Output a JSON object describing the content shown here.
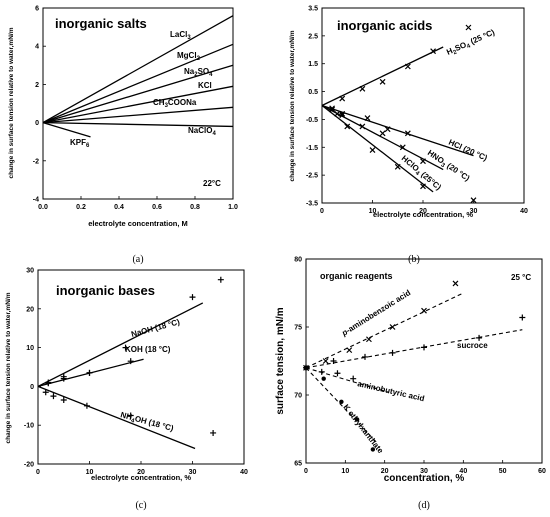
{
  "chart_data": [
    {
      "id": "a",
      "type": "line",
      "caption": "(a)",
      "title": "inorganic salts",
      "xlabel": "electrolyte  concentration, M",
      "ylabel": "change in surface tension relative to water,mN/m",
      "xlim": [
        0,
        1.0
      ],
      "ylim": [
        -4,
        6
      ],
      "xticks": [
        "0.0",
        "0.2",
        "0.4",
        "0.6",
        "0.8",
        "1.0"
      ],
      "yticks": [
        "-4",
        "-2",
        "0",
        "2",
        "4",
        "6"
      ],
      "annotation": "22°C",
      "series": [
        {
          "name": "LaCl3",
          "x": [
            0,
            1.0
          ],
          "y": [
            0,
            5.6
          ]
        },
        {
          "name": "MgCl2",
          "x": [
            0,
            1.0
          ],
          "y": [
            0,
            4.1
          ]
        },
        {
          "name": "Na2SO4",
          "x": [
            0,
            1.0
          ],
          "y": [
            0,
            3.0
          ]
        },
        {
          "name": "KCl",
          "x": [
            0,
            1.0
          ],
          "y": [
            0,
            1.9
          ]
        },
        {
          "name": "CH3COONa",
          "x": [
            0,
            1.0
          ],
          "y": [
            0,
            0.8
          ]
        },
        {
          "name": "NaClO4",
          "x": [
            0,
            1.0
          ],
          "y": [
            0,
            -0.2
          ]
        },
        {
          "name": "KPF6",
          "x": [
            0,
            0.25
          ],
          "y": [
            0,
            -0.75
          ]
        }
      ]
    },
    {
      "id": "b",
      "type": "line",
      "caption": "(b)",
      "title": "inorganic acids",
      "xlabel": "electrolyte concentration, %",
      "ylabel": "change in surface tension relative to water,mN/m",
      "xlim": [
        0,
        40
      ],
      "ylim": [
        -3.5,
        3.5
      ],
      "xticks": [
        "0",
        "10",
        "20",
        "30",
        "40"
      ],
      "yticks": [
        "-3.5",
        "-2.5",
        "-1.5",
        "-0.5",
        "0.5",
        "1.5",
        "2.5",
        "3.5"
      ],
      "series": [
        {
          "name": "H2SO4 (25 °C)",
          "x": [
            0,
            24
          ],
          "y": [
            0,
            2.1
          ],
          "points": [
            [
              4,
              0.25
            ],
            [
              8,
              0.6
            ],
            [
              12,
              0.85
            ],
            [
              17,
              1.4
            ],
            [
              22,
              1.95
            ],
            [
              29,
              2.8
            ]
          ]
        },
        {
          "name": "HCl (20 °C)",
          "x": [
            0,
            30
          ],
          "y": [
            0,
            -1.8
          ],
          "points": [
            [
              2,
              -0.1
            ],
            [
              4,
              -0.3
            ],
            [
              9,
              -0.45
            ],
            [
              13,
              -0.85
            ],
            [
              17,
              -1.0
            ]
          ]
        },
        {
          "name": "HNO3 (20 °C)",
          "x": [
            0,
            24
          ],
          "y": [
            0,
            -2.3
          ],
          "points": [
            [
              2,
              -0.15
            ],
            [
              4,
              -0.35
            ],
            [
              8,
              -0.75
            ],
            [
              12,
              -1.0
            ],
            [
              16,
              -1.5
            ],
            [
              20,
              -2.0
            ]
          ]
        },
        {
          "name": "HClO4 (25°C)",
          "x": [
            0,
            22
          ],
          "y": [
            0,
            -3.1
          ],
          "points": [
            [
              3,
              -0.3
            ],
            [
              5,
              -0.75
            ],
            [
              10,
              -1.6
            ],
            [
              15,
              -2.2
            ],
            [
              20,
              -2.9
            ],
            [
              30,
              -3.4
            ]
          ]
        }
      ]
    },
    {
      "id": "c",
      "type": "line",
      "caption": "(c)",
      "title": "inorganic bases",
      "xlabel": "electrolyte concentration, %",
      "ylabel": "change in surface tension relative to water,mN/m",
      "xlim": [
        0,
        40
      ],
      "ylim": [
        -20,
        30
      ],
      "xticks": [
        "0",
        "10",
        "20",
        "30",
        "40"
      ],
      "yticks": [
        "-20",
        "-10",
        "0",
        "10",
        "20",
        "30"
      ],
      "series": [
        {
          "name": "NaOH (18 °C)",
          "x": [
            0,
            32
          ],
          "y": [
            0,
            21.5
          ],
          "points": [
            [
              2,
              1.0
            ],
            [
              5,
              2.5
            ],
            [
              10,
              3.5
            ],
            [
              17,
              10.0
            ],
            [
              30,
              23.0
            ],
            [
              35.5,
              27.5
            ]
          ]
        },
        {
          "name": "KOH (18 °C)",
          "x": [
            0,
            20.5
          ],
          "y": [
            0,
            7.0
          ],
          "points": [
            [
              2,
              0.8
            ],
            [
              5,
              2.0
            ],
            [
              10,
              3.5
            ],
            [
              18,
              6.5
            ]
          ]
        },
        {
          "name": "NH4OH (18 °C)",
          "x": [
            0,
            30.5
          ],
          "y": [
            0,
            -16.0
          ],
          "points": [
            [
              1.5,
              -1.5
            ],
            [
              3,
              -2.5
            ],
            [
              5,
              -3.5
            ],
            [
              9.5,
              -5.0
            ],
            [
              18,
              -7.5
            ],
            [
              34,
              -12.0
            ]
          ]
        }
      ]
    },
    {
      "id": "d",
      "type": "line",
      "caption": "(d)",
      "title": "organic reagents",
      "xlabel": "concentration, %",
      "ylabel": "surface tension, mN/m",
      "xlim": [
        0,
        60
      ],
      "ylim": [
        65,
        80
      ],
      "xticks": [
        "0",
        "10",
        "20",
        "30",
        "40",
        "50",
        "60"
      ],
      "yticks": [
        "65",
        "70",
        "75",
        "80"
      ],
      "annotation": "25 °C",
      "series": [
        {
          "name": "p-aminobenzoic acid",
          "x": [
            0,
            40
          ],
          "y": [
            72,
            77.5
          ],
          "points": [
            [
              0,
              72
            ],
            [
              5,
              72.5
            ],
            [
              11,
              73.3
            ],
            [
              16,
              74.1
            ],
            [
              22,
              75.0
            ],
            [
              30,
              76.2
            ],
            [
              38,
              78.2
            ]
          ]
        },
        {
          "name": "sucroce",
          "x": [
            0,
            55
          ],
          "y": [
            72,
            74.8
          ],
          "points": [
            [
              0,
              72
            ],
            [
              7,
              72.5
            ],
            [
              15,
              72.8
            ],
            [
              22,
              73.1
            ],
            [
              30,
              73.5
            ],
            [
              44,
              74.2
            ],
            [
              55,
              75.7
            ]
          ]
        },
        {
          "name": "aminobutyric acid",
          "x": [
            0,
            21
          ],
          "y": [
            72,
            70.2
          ],
          "points": [
            [
              0,
              72
            ],
            [
              4,
              71.7
            ],
            [
              8,
              71.6
            ],
            [
              12,
              71.2
            ]
          ]
        },
        {
          "name": "K ethylxanthate",
          "x": [
            0,
            18
          ],
          "y": [
            72,
            66.5
          ],
          "points": [
            [
              0,
              72
            ],
            [
              4.5,
              71.2
            ],
            [
              9,
              69.5
            ],
            [
              13,
              68.2
            ],
            [
              17,
              66.0
            ]
          ]
        }
      ]
    }
  ]
}
